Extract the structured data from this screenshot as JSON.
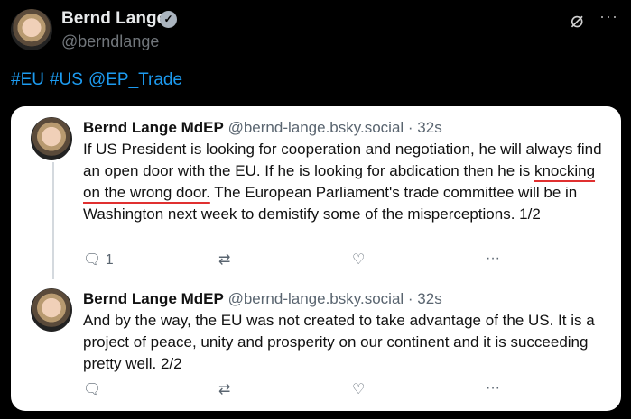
{
  "author": {
    "name": "Bernd Lange",
    "handle": "@berndlange",
    "verified": true
  },
  "tweet": {
    "tags": [
      "#EU",
      "#US",
      "@EP_Trade"
    ]
  },
  "icons": {
    "grok": "grok-icon",
    "more": "more-icon"
  },
  "posts": [
    {
      "name": "Bernd Lange MdEP",
      "handle": "@bernd-lange.bsky.social · 32s",
      "text_before": "If US President is looking for cooperation and negotiation, he will always find an open door with the EU. If he is looking for abdication then he is ",
      "text_underlined": "knocking on the wrong door.",
      "text_after": " The European Parliament's trade committee will be in Washington next week to demistify some of the misperceptions. 1/2",
      "reply_count": "1"
    },
    {
      "name": "Bernd Lange MdEP",
      "handle": "@bernd-lange.bsky.social · 32s",
      "text_before": "And by the way, the EU was not created to take advantage of the US. It is a project of peace, unity and prosperity on our continent and it is succeeding pretty well. 2/2",
      "text_underlined": "",
      "text_after": "",
      "reply_count": ""
    }
  ],
  "colors": {
    "link": "#1d9bf0",
    "underline": "#e03030"
  }
}
